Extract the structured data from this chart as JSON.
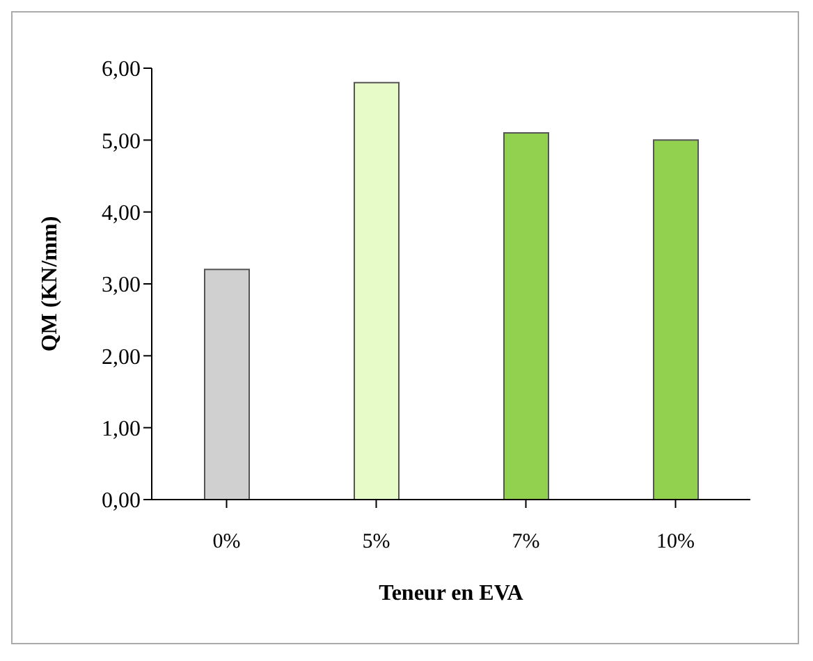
{
  "chart_data": {
    "type": "bar",
    "xlabel": "Teneur en EVA",
    "ylabel": "QM (KN/mm)",
    "categories": [
      "0%",
      "5%",
      "7%",
      "10%"
    ],
    "values": [
      3.2,
      5.8,
      5.1,
      5.0
    ],
    "colors": [
      "#d0d0d0",
      "#e6fbc8",
      "#92d050",
      "#92d050"
    ],
    "ylim": [
      0,
      6
    ],
    "yticks": [
      {
        "value": 0,
        "label": "0,00"
      },
      {
        "value": 1,
        "label": "1,00"
      },
      {
        "value": 2,
        "label": "2,00"
      },
      {
        "value": 3,
        "label": "3,00"
      },
      {
        "value": 4,
        "label": "4,00"
      },
      {
        "value": 5,
        "label": "5,00"
      },
      {
        "value": 6,
        "label": "6,00"
      }
    ],
    "grid": false,
    "legend": false
  }
}
